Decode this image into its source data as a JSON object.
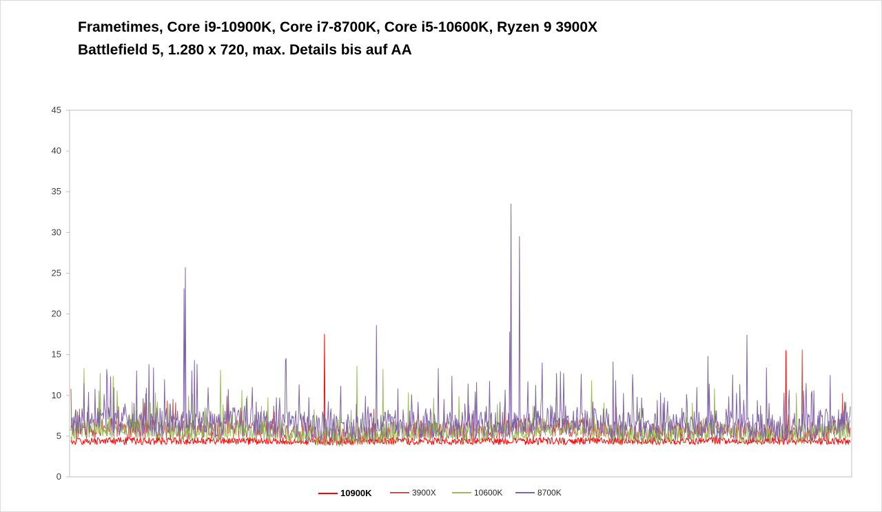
{
  "title_line1": "Frametimes, Core i9-10900K, Core i7-8700K, Core i5-10600K, Ryzen 9 3900X",
  "title_line2": "Battlefield 5, 1.280 x 720, max. Details bis auf AA",
  "chart_data": {
    "type": "line",
    "title": "Frametimes, Core i9-10900K, Core i7-8700K, Core i5-10600K, Ryzen 9 3900X\nBattlefield 5, 1.280 x 720, max. Details bis auf AA",
    "xlabel": "",
    "ylabel": "",
    "ylim": [
      0,
      45
    ],
    "yticks": [
      "0",
      "5",
      "10",
      "15",
      "20",
      "25",
      "30",
      "35",
      "40",
      "45"
    ],
    "grid": false,
    "legend_position": "bottom",
    "samples": 1200,
    "series": [
      {
        "name": "10900K",
        "color": "#ff0000",
        "typical": 4.4,
        "values_note_free": true,
        "spikes": [
          [
            390,
            17.5
          ],
          [
            1100,
            15.5
          ]
        ]
      },
      {
        "name": "3900X",
        "color": "#c0504d",
        "typical": 5.6,
        "spikes": [
          [
            0,
            10.8
          ],
          [
            240,
            9.9
          ],
          [
            1125,
            15.6
          ],
          [
            1190,
            9.2
          ]
        ]
      },
      {
        "name": "10600K",
        "color": "#9bbb59",
        "typical": 5.5,
        "spikes": [
          [
            20,
            13.3
          ],
          [
            45,
            12.7
          ],
          [
            230,
            13.1
          ],
          [
            440,
            13.6
          ],
          [
            480,
            13.2
          ],
          [
            990,
            10.8
          ]
        ]
      },
      {
        "name": "8700K",
        "color": "#8064a2",
        "typical": 6.5,
        "spikes": [
          [
            20,
            11.5
          ],
          [
            55,
            13.2
          ],
          [
            120,
            13.8
          ],
          [
            174,
            23.1
          ],
          [
            176,
            25.7
          ],
          [
            190,
            14.3
          ],
          [
            330,
            14.3
          ],
          [
            470,
            18.6
          ],
          [
            565,
            13.3
          ],
          [
            675,
            17.8
          ],
          [
            677,
            33.5
          ],
          [
            690,
            29.5
          ],
          [
            725,
            14.0
          ],
          [
            785,
            12.6
          ],
          [
            980,
            14.8
          ],
          [
            1040,
            17.4
          ],
          [
            1140,
            10.5
          ]
        ]
      }
    ]
  }
}
